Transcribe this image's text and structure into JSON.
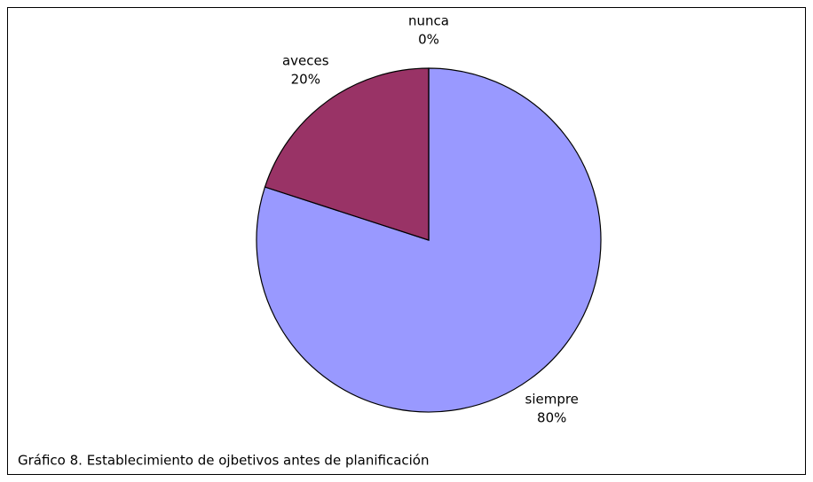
{
  "chart_data": {
    "type": "pie",
    "title": "Gráfico 8. Establecimiento de ojbetivos antes de planificación",
    "categories": [
      "siempre",
      "aveces",
      "nunca"
    ],
    "values": [
      80,
      20,
      0
    ],
    "value_labels": [
      "80%",
      "20%",
      "0%"
    ],
    "colors": [
      "#9999ff",
      "#993366",
      "#ffffcc"
    ]
  }
}
